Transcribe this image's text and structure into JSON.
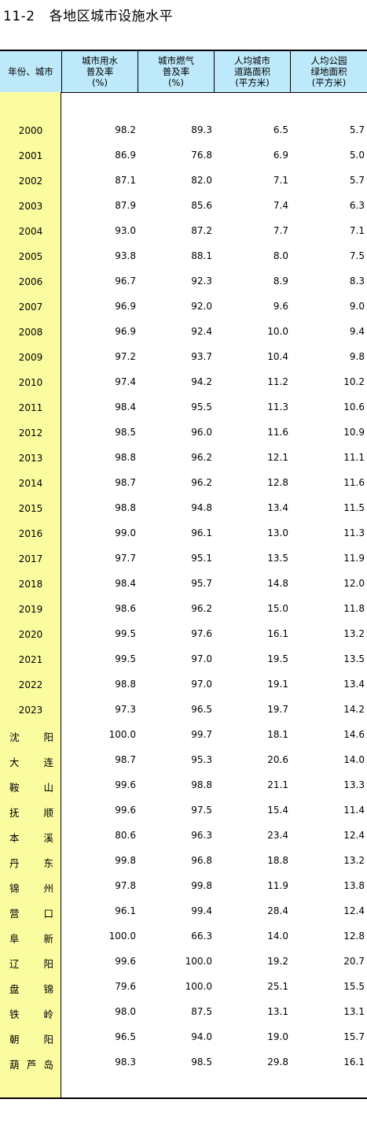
{
  "title": {
    "number": "11-2",
    "text": "各地区城市设施水平"
  },
  "columns": [
    {
      "line1": "年份、城市",
      "line2": "",
      "line3": ""
    },
    {
      "line1": "城市用水",
      "line2": "普及率",
      "line3": "(%)"
    },
    {
      "line1": "城市燃气",
      "line2": "普及率",
      "line3": "(%)"
    },
    {
      "line1": "人均城市",
      "line2": "道路面积",
      "line3": "(平方米)"
    },
    {
      "line1": "人均公园",
      "line2": "绿地面积",
      "line3": "(平方米)"
    }
  ],
  "rows": [
    {
      "label": "2000",
      "a": "",
      "b": "",
      "v1": "98.2",
      "v2": "89.3",
      "v3": "6.5",
      "v4": "5.7"
    },
    {
      "label": "2001",
      "a": "",
      "b": "",
      "v1": "86.9",
      "v2": "76.8",
      "v3": "6.9",
      "v4": "5.0"
    },
    {
      "label": "2002",
      "a": "",
      "b": "",
      "v1": "87.1",
      "v2": "82.0",
      "v3": "7.1",
      "v4": "5.7"
    },
    {
      "label": "2003",
      "a": "",
      "b": "",
      "v1": "87.9",
      "v2": "85.6",
      "v3": "7.4",
      "v4": "6.3"
    },
    {
      "label": "2004",
      "a": "",
      "b": "",
      "v1": "93.0",
      "v2": "87.2",
      "v3": "7.7",
      "v4": "7.1"
    },
    {
      "label": "2005",
      "a": "",
      "b": "",
      "v1": "93.8",
      "v2": "88.1",
      "v3": "8.0",
      "v4": "7.5"
    },
    {
      "label": "2006",
      "a": "",
      "b": "",
      "v1": "96.7",
      "v2": "92.3",
      "v3": "8.9",
      "v4": "8.3"
    },
    {
      "label": "2007",
      "a": "",
      "b": "",
      "v1": "96.9",
      "v2": "92.0",
      "v3": "9.6",
      "v4": "9.0"
    },
    {
      "label": "2008",
      "a": "",
      "b": "",
      "v1": "96.9",
      "v2": "92.4",
      "v3": "10.0",
      "v4": "9.4"
    },
    {
      "label": "2009",
      "a": "",
      "b": "",
      "v1": "97.2",
      "v2": "93.7",
      "v3": "10.4",
      "v4": "9.8"
    },
    {
      "label": "2010",
      "a": "",
      "b": "",
      "v1": "97.4",
      "v2": "94.2",
      "v3": "11.2",
      "v4": "10.2"
    },
    {
      "label": "2011",
      "a": "",
      "b": "",
      "v1": "98.4",
      "v2": "95.5",
      "v3": "11.3",
      "v4": "10.6"
    },
    {
      "label": "2012",
      "a": "",
      "b": "",
      "v1": "98.5",
      "v2": "96.0",
      "v3": "11.6",
      "v4": "10.9"
    },
    {
      "label": "2013",
      "a": "",
      "b": "",
      "v1": "98.8",
      "v2": "96.2",
      "v3": "12.1",
      "v4": "11.1"
    },
    {
      "label": "2014",
      "a": "",
      "b": "",
      "v1": "98.7",
      "v2": "96.2",
      "v3": "12.8",
      "v4": "11.6"
    },
    {
      "label": "2015",
      "a": "",
      "b": "",
      "v1": "98.8",
      "v2": "94.8",
      "v3": "13.4",
      "v4": "11.5"
    },
    {
      "label": "2016",
      "a": "",
      "b": "",
      "v1": "99.0",
      "v2": "96.1",
      "v3": "13.0",
      "v4": "11.3"
    },
    {
      "label": "2017",
      "a": "",
      "b": "",
      "v1": "97.7",
      "v2": "95.1",
      "v3": "13.5",
      "v4": "11.9"
    },
    {
      "label": "2018",
      "a": "",
      "b": "",
      "v1": "98.4",
      "v2": "95.7",
      "v3": "14.8",
      "v4": "12.0"
    },
    {
      "label": "2019",
      "a": "",
      "b": "",
      "v1": "98.6",
      "v2": "96.2",
      "v3": "15.0",
      "v4": "11.8"
    },
    {
      "label": "2020",
      "a": "",
      "b": "",
      "v1": "99.5",
      "v2": "97.6",
      "v3": "16.1",
      "v4": "13.2"
    },
    {
      "label": "2021",
      "a": "",
      "b": "",
      "v1": "99.5",
      "v2": "97.0",
      "v3": "19.5",
      "v4": "13.5"
    },
    {
      "label": "2022",
      "a": "",
      "b": "",
      "v1": "98.8",
      "v2": "97.0",
      "v3": "19.1",
      "v4": "13.4"
    },
    {
      "label": "2023",
      "a": "",
      "b": "",
      "v1": "97.3",
      "v2": "96.5",
      "v3": "19.7",
      "v4": "14.2"
    },
    {
      "label": "",
      "a": "沈",
      "b": "阳",
      "v1": "100.0",
      "v2": "99.7",
      "v3": "18.1",
      "v4": "14.6"
    },
    {
      "label": "",
      "a": "大",
      "b": "连",
      "v1": "98.7",
      "v2": "95.3",
      "v3": "20.6",
      "v4": "14.0"
    },
    {
      "label": "",
      "a": "鞍",
      "b": "山",
      "v1": "99.6",
      "v2": "98.8",
      "v3": "21.1",
      "v4": "13.3"
    },
    {
      "label": "",
      "a": "抚",
      "b": "顺",
      "v1": "99.6",
      "v2": "97.5",
      "v3": "15.4",
      "v4": "11.4"
    },
    {
      "label": "",
      "a": "本",
      "b": "溪",
      "v1": "80.6",
      "v2": "96.3",
      "v3": "23.4",
      "v4": "12.4"
    },
    {
      "label": "",
      "a": "丹",
      "b": "东",
      "v1": "99.8",
      "v2": "96.8",
      "v3": "18.8",
      "v4": "13.2"
    },
    {
      "label": "",
      "a": "锦",
      "b": "州",
      "v1": "97.8",
      "v2": "99.8",
      "v3": "11.9",
      "v4": "13.8"
    },
    {
      "label": "",
      "a": "营",
      "b": "口",
      "v1": "96.1",
      "v2": "99.4",
      "v3": "28.4",
      "v4": "12.4"
    },
    {
      "label": "",
      "a": "阜",
      "b": "新",
      "v1": "100.0",
      "v2": "66.3",
      "v3": "14.0",
      "v4": "12.8"
    },
    {
      "label": "",
      "a": "辽",
      "b": "阳",
      "v1": "99.6",
      "v2": "100.0",
      "v3": "19.2",
      "v4": "20.7"
    },
    {
      "label": "",
      "a": "盘",
      "b": "锦",
      "v1": "79.6",
      "v2": "100.0",
      "v3": "25.1",
      "v4": "15.5"
    },
    {
      "label": "",
      "a": "铁",
      "b": "岭",
      "v1": "98.0",
      "v2": "87.5",
      "v3": "13.1",
      "v4": "13.1"
    },
    {
      "label": "",
      "a": "朝",
      "b": "阳",
      "v1": "96.5",
      "v2": "94.0",
      "v3": "19.0",
      "v4": "15.7"
    },
    {
      "label": "",
      "a": "葫",
      "b": "芦",
      "c": "岛",
      "v1": "98.3",
      "v2": "98.5",
      "v3": "29.8",
      "v4": "16.1"
    }
  ]
}
